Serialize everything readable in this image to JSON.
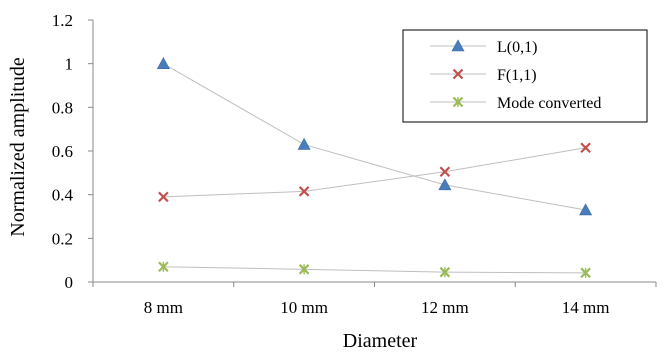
{
  "chart_data": {
    "type": "line",
    "title": "",
    "xlabel": "Diameter",
    "ylabel": "Normalized amplitude",
    "categories": [
      "8 mm",
      "10 mm",
      "12 mm",
      "14 mm"
    ],
    "ylim": [
      0,
      1.2
    ],
    "yticks": [
      "0",
      "0.2",
      "0.4",
      "0.6",
      "0.8",
      "1",
      "1.2"
    ],
    "grid": false,
    "legend_position": "top-right",
    "series": [
      {
        "name": "L(0,1)",
        "marker": "triangle",
        "color": "#4a7ebb",
        "values": [
          1.0,
          0.63,
          0.445,
          0.33
        ]
      },
      {
        "name": "F(1,1)",
        "marker": "x",
        "color": "#c0504d",
        "values": [
          0.39,
          0.415,
          0.505,
          0.615
        ]
      },
      {
        "name": "Mode converted",
        "marker": "star-x",
        "color": "#9bbb59",
        "values": [
          0.07,
          0.058,
          0.045,
          0.042
        ]
      }
    ]
  }
}
